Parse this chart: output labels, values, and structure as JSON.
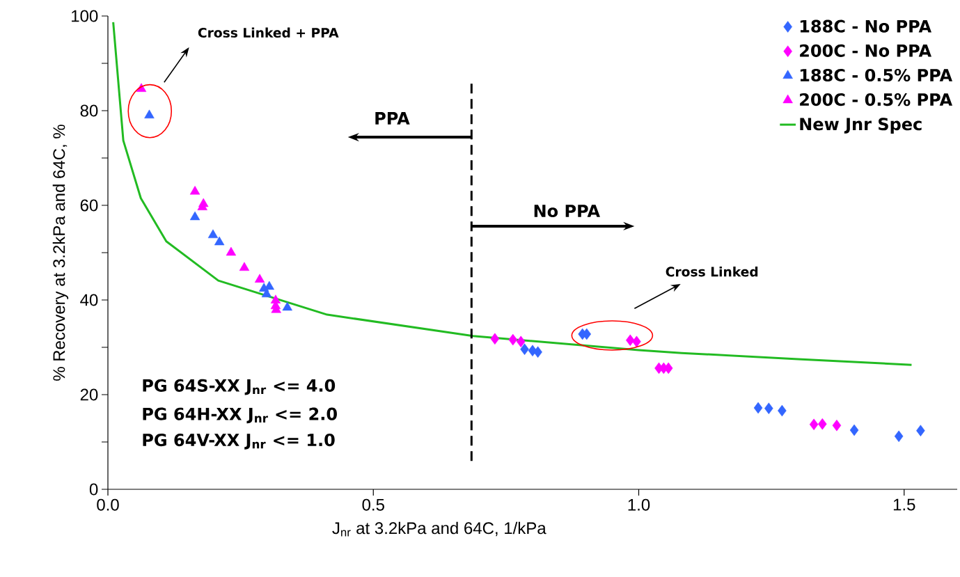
{
  "chart_data": {
    "type": "scatter",
    "xlabel": "J$_{nr}$ at 3.2kPa and 64C, 1/kPa",
    "ylabel": "% Recovery at 3.2kPa and 64C, %",
    "xlim": [
      0,
      1.6
    ],
    "ylim": [
      0,
      100
    ],
    "xticks": [
      {
        "value": 0,
        "label": "0.0"
      },
      {
        "value": 0.5,
        "label": "0.5"
      },
      {
        "value": 1.0,
        "label": "1.0"
      },
      {
        "value": 1.5,
        "label": "1.5"
      }
    ],
    "yticks": [
      0,
      {
        "value": 10,
        "label": null
      },
      20,
      {
        "value": 30,
        "label": null
      },
      40,
      {
        "value": 50,
        "label": null
      },
      60,
      {
        "value": 70,
        "label": null
      },
      80,
      {
        "value": 90,
        "label": null
      },
      100
    ],
    "grid": false,
    "legend": "top right",
    "series": [
      {
        "name": "188C - No PPA",
        "marker": "diamond",
        "color": "#3366ff",
        "x": [
          0.894,
          0.902,
          0.785,
          0.8,
          0.81,
          1.225,
          1.245,
          1.27,
          1.406,
          1.49,
          1.531
        ],
        "values": [
          32.8,
          32.8,
          29.6,
          29.3,
          29.0,
          17.2,
          17.1,
          16.6,
          12.5,
          11.2,
          12.4
        ]
      },
      {
        "name": "200C - No PPA",
        "marker": "diamond",
        "color": "#ff00ff",
        "x": [
          0.729,
          0.763,
          0.778,
          0.984,
          0.996,
          1.038,
          1.047,
          1.056,
          1.33,
          1.346,
          1.373
        ],
        "values": [
          31.8,
          31.6,
          31.2,
          31.5,
          31.2,
          25.6,
          25.6,
          25.6,
          13.7,
          13.8,
          13.5
        ]
      },
      {
        "name": "188C - 0.5% PPA",
        "marker": "triangle",
        "color": "#3366ff",
        "x": [
          0.078,
          0.164,
          0.198,
          0.21,
          0.294,
          0.304,
          0.299,
          0.338
        ],
        "values": [
          79.0,
          57.5,
          53.7,
          52.2,
          42.4,
          42.8,
          41.2,
          38.4
        ]
      },
      {
        "name": "200C - 0.5% PPA",
        "marker": "triangle",
        "color": "#ff00ff",
        "x": [
          0.063,
          0.164,
          0.18,
          0.178,
          0.232,
          0.257,
          0.286,
          0.316,
          0.316,
          0.317
        ],
        "values": [
          84.6,
          62.9,
          60.3,
          59.6,
          50.0,
          46.8,
          44.3,
          39.9,
          38.7,
          37.9
        ]
      },
      {
        "name": "New Jnr Spec",
        "type": "line",
        "marker": "none",
        "line_style": "solid",
        "color": "#22bb22",
        "x": [
          0.01,
          0.029,
          0.062,
          0.11,
          0.208,
          0.413,
          0.688,
          1.0,
          1.081,
          1.3,
          1.514
        ],
        "values": [
          98.7,
          73.7,
          61.5,
          52.4,
          44.1,
          36.9,
          32.4,
          29.4,
          28.8,
          27.5,
          26.3
        ]
      }
    ],
    "ref_lines": [
      {
        "axis": "x",
        "value": 0.685,
        "color": "#000000",
        "line_style": "dashed"
      }
    ],
    "annotations": [
      "Cross Linked + PPA",
      "Cross Linked",
      "PPA",
      "No PPA",
      "PG 64S-XX J$_{nr}$ <= 4.0",
      "PG 64H-XX J$_{nr}$ <= 2.0",
      "PG 64V-XX J$_{nr}$ <= 1.0"
    ]
  }
}
